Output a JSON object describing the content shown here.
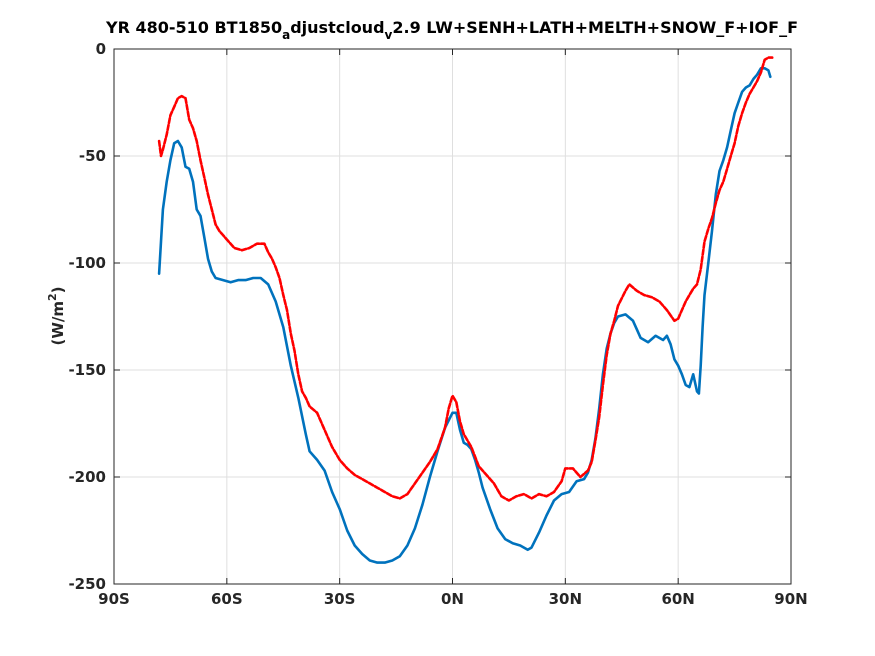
{
  "chart_data": {
    "type": "line",
    "title_parts": [
      "YR 480-510 BT1850",
      "a",
      "djustcloud",
      "v",
      "2.9 LW+SENH+LATH+MELTH+SNOW_F+IOF_F"
    ],
    "ylabel_parts": [
      "(W/m",
      "2",
      ")"
    ],
    "xlabel": "",
    "xlim": [
      -90,
      90
    ],
    "ylim": [
      -250,
      0
    ],
    "x_ticks": [
      -90,
      -60,
      -30,
      0,
      30,
      60,
      90
    ],
    "x_tick_labels": [
      "90S",
      "60S",
      "30S",
      "0N",
      "30N",
      "60N",
      "90N"
    ],
    "y_ticks": [
      0,
      -50,
      -100,
      -150,
      -200,
      -250
    ],
    "y_tick_labels": [
      "0",
      "-50",
      "-100",
      "-150",
      "-200",
      "-250"
    ],
    "grid": true,
    "series": [
      {
        "color": "#0072BD",
        "style": "solid",
        "points": [
          [
            -78,
            -105
          ],
          [
            -77.5,
            -90
          ],
          [
            -77,
            -75
          ],
          [
            -76,
            -62
          ],
          [
            -75,
            -52
          ],
          [
            -74,
            -44
          ],
          [
            -73,
            -43
          ],
          [
            -72,
            -46
          ],
          [
            -71,
            -55
          ],
          [
            -70,
            -56
          ],
          [
            -69,
            -62
          ],
          [
            -68,
            -75
          ],
          [
            -67,
            -78
          ],
          [
            -66,
            -88
          ],
          [
            -65,
            -98
          ],
          [
            -64,
            -104
          ],
          [
            -63,
            -107
          ],
          [
            -61,
            -108
          ],
          [
            -59,
            -109
          ],
          [
            -57,
            -108
          ],
          [
            -55,
            -108
          ],
          [
            -53,
            -107
          ],
          [
            -51,
            -107
          ],
          [
            -49,
            -110
          ],
          [
            -47,
            -118
          ],
          [
            -45,
            -130
          ],
          [
            -43,
            -148
          ],
          [
            -41,
            -163
          ],
          [
            -39,
            -180
          ],
          [
            -38,
            -188
          ],
          [
            -36,
            -192
          ],
          [
            -34,
            -197
          ],
          [
            -32,
            -207
          ],
          [
            -30,
            -215
          ],
          [
            -28,
            -225
          ],
          [
            -26,
            -232
          ],
          [
            -24,
            -236
          ],
          [
            -22,
            -239
          ],
          [
            -20,
            -240
          ],
          [
            -18,
            -240
          ],
          [
            -16,
            -239
          ],
          [
            -14,
            -237
          ],
          [
            -12,
            -232
          ],
          [
            -10,
            -224
          ],
          [
            -8,
            -213
          ],
          [
            -6,
            -200
          ],
          [
            -4,
            -188
          ],
          [
            -2,
            -177
          ],
          [
            0,
            -170
          ],
          [
            1,
            -170
          ],
          [
            2,
            -178
          ],
          [
            3,
            -184
          ],
          [
            4,
            -185
          ],
          [
            5,
            -187
          ],
          [
            6,
            -192
          ],
          [
            7,
            -198
          ],
          [
            8,
            -205
          ],
          [
            10,
            -215
          ],
          [
            12,
            -224
          ],
          [
            14,
            -229
          ],
          [
            16,
            -231
          ],
          [
            18,
            -232
          ],
          [
            20,
            -234
          ],
          [
            21,
            -233
          ],
          [
            23,
            -226
          ],
          [
            25,
            -218
          ],
          [
            27,
            -211
          ],
          [
            29,
            -208
          ],
          [
            31,
            -207
          ],
          [
            33,
            -202
          ],
          [
            35,
            -201
          ],
          [
            36,
            -198
          ],
          [
            37,
            -192
          ],
          [
            38,
            -182
          ],
          [
            39,
            -168
          ],
          [
            40,
            -152
          ],
          [
            41,
            -140
          ],
          [
            42,
            -133
          ],
          [
            43,
            -128
          ],
          [
            44,
            -125
          ],
          [
            46,
            -124
          ],
          [
            48,
            -127
          ],
          [
            49,
            -131
          ],
          [
            50,
            -135
          ],
          [
            52,
            -137
          ],
          [
            54,
            -134
          ],
          [
            56,
            -136
          ],
          [
            57,
            -134
          ],
          [
            58,
            -138
          ],
          [
            59,
            -145
          ],
          [
            60,
            -148
          ],
          [
            61,
            -152
          ],
          [
            62,
            -157
          ],
          [
            63,
            -158
          ],
          [
            64,
            -152
          ],
          [
            65,
            -160
          ],
          [
            65.5,
            -161
          ],
          [
            66,
            -148
          ],
          [
            66.5,
            -130
          ],
          [
            67,
            -115
          ],
          [
            68,
            -100
          ],
          [
            69,
            -85
          ],
          [
            70,
            -68
          ],
          [
            71,
            -57
          ],
          [
            72,
            -52
          ],
          [
            73,
            -46
          ],
          [
            74,
            -38
          ],
          [
            75,
            -30
          ],
          [
            76,
            -25
          ],
          [
            77,
            -20
          ],
          [
            78,
            -18
          ],
          [
            79,
            -17
          ],
          [
            80,
            -14
          ],
          [
            81,
            -12
          ],
          [
            82,
            -9
          ],
          [
            83,
            -9
          ],
          [
            84,
            -10
          ],
          [
            84.5,
            -13
          ]
        ]
      },
      {
        "color": "#FF0000",
        "style": "dashed",
        "points": [
          [
            -78,
            -43
          ],
          [
            -77.5,
            -50
          ],
          [
            -77,
            -47
          ],
          [
            -76,
            -40
          ],
          [
            -75,
            -31
          ],
          [
            -74,
            -27
          ],
          [
            -73,
            -23
          ],
          [
            -72,
            -22
          ],
          [
            -71,
            -23
          ],
          [
            -70,
            -33
          ],
          [
            -69,
            -37
          ],
          [
            -68,
            -43
          ],
          [
            -67,
            -52
          ],
          [
            -66,
            -60
          ],
          [
            -65,
            -68
          ],
          [
            -64,
            -75
          ],
          [
            -63,
            -82
          ],
          [
            -62,
            -85
          ],
          [
            -61,
            -87
          ],
          [
            -60,
            -89
          ],
          [
            -58,
            -93
          ],
          [
            -56,
            -94
          ],
          [
            -54,
            -93
          ],
          [
            -52,
            -91
          ],
          [
            -50,
            -91
          ],
          [
            -49,
            -95
          ],
          [
            -48,
            -98
          ],
          [
            -47,
            -102
          ],
          [
            -46,
            -107
          ],
          [
            -45,
            -115
          ],
          [
            -44,
            -122
          ],
          [
            -43,
            -133
          ],
          [
            -42,
            -141
          ],
          [
            -41,
            -152
          ],
          [
            -40,
            -160
          ],
          [
            -39,
            -163
          ],
          [
            -38,
            -167
          ],
          [
            -36,
            -170
          ],
          [
            -34,
            -178
          ],
          [
            -32,
            -186
          ],
          [
            -30,
            -192
          ],
          [
            -28,
            -196
          ],
          [
            -26,
            -199
          ],
          [
            -24,
            -201
          ],
          [
            -22,
            -203
          ],
          [
            -20,
            -205
          ],
          [
            -18,
            -207
          ],
          [
            -16,
            -209
          ],
          [
            -14,
            -210
          ],
          [
            -12,
            -208
          ],
          [
            -10,
            -203
          ],
          [
            -8,
            -198
          ],
          [
            -6,
            -193
          ],
          [
            -4,
            -187
          ],
          [
            -2,
            -177
          ],
          [
            -1,
            -168
          ],
          [
            0,
            -162
          ],
          [
            1,
            -165
          ],
          [
            2,
            -174
          ],
          [
            3,
            -180
          ],
          [
            5,
            -186
          ],
          [
            7,
            -195
          ],
          [
            9,
            -199
          ],
          [
            11,
            -203
          ],
          [
            13,
            -209
          ],
          [
            15,
            -211
          ],
          [
            17,
            -209
          ],
          [
            19,
            -208
          ],
          [
            21,
            -210
          ],
          [
            23,
            -208
          ],
          [
            25,
            -209
          ],
          [
            27,
            -207
          ],
          [
            29,
            -202
          ],
          [
            30,
            -196
          ],
          [
            32,
            -196
          ],
          [
            34,
            -200
          ],
          [
            36,
            -197
          ],
          [
            37,
            -193
          ],
          [
            38,
            -183
          ],
          [
            39,
            -172
          ],
          [
            40,
            -157
          ],
          [
            41,
            -143
          ],
          [
            42,
            -133
          ],
          [
            43,
            -127
          ],
          [
            44,
            -120
          ],
          [
            46,
            -113
          ],
          [
            47,
            -110
          ],
          [
            49,
            -113
          ],
          [
            51,
            -115
          ],
          [
            53,
            -116
          ],
          [
            55,
            -118
          ],
          [
            57,
            -122
          ],
          [
            59,
            -127
          ],
          [
            60,
            -126
          ],
          [
            61,
            -122
          ],
          [
            62,
            -118
          ],
          [
            63,
            -115
          ],
          [
            64,
            -112
          ],
          [
            65,
            -110
          ],
          [
            66,
            -103
          ],
          [
            67,
            -90
          ],
          [
            68,
            -84
          ],
          [
            69,
            -79
          ],
          [
            70,
            -72
          ],
          [
            71,
            -66
          ],
          [
            72,
            -62
          ],
          [
            73,
            -56
          ],
          [
            74,
            -50
          ],
          [
            75,
            -44
          ],
          [
            76,
            -36
          ],
          [
            77,
            -30
          ],
          [
            78,
            -25
          ],
          [
            79,
            -21
          ],
          [
            80,
            -18
          ],
          [
            81,
            -15
          ],
          [
            82,
            -11
          ],
          [
            83,
            -5
          ],
          [
            84,
            -4
          ],
          [
            85,
            -4
          ]
        ]
      }
    ]
  }
}
